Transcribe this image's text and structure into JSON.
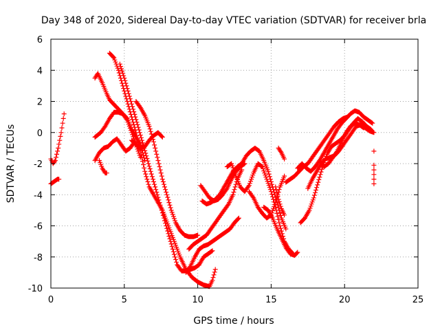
{
  "chart_data": {
    "type": "scatter",
    "title": "Day 348 of 2020, Sidereal Day-to-day VTEC variation (SDTVAR) for receiver brla",
    "xlabel": "GPS time / hours",
    "ylabel": "SDTVAR / TECUs",
    "xlim": [
      0,
      25
    ],
    "ylim": [
      -10,
      6
    ],
    "xticks": [
      0,
      5,
      10,
      15,
      20,
      25
    ],
    "yticks": [
      -10,
      -8,
      -6,
      -4,
      -2,
      0,
      2,
      4,
      6
    ],
    "grid": true,
    "marker": "plus",
    "color": "#ff0000",
    "series": [
      {
        "x": [
          0.0,
          0.15,
          0.3,
          0.45,
          0.55
        ],
        "y": [
          -3.3,
          -3.2,
          -3.1,
          -3.0,
          -3.0
        ]
      },
      {
        "x": [
          0.0,
          0.15,
          0.3,
          0.4,
          0.5,
          0.6,
          0.7,
          0.8,
          0.9
        ],
        "y": [
          -1.7,
          -2.0,
          -1.8,
          -1.4,
          -1.0,
          -0.5,
          0.0,
          0.6,
          1.2
        ]
      },
      {
        "x": [
          3.0,
          3.2,
          3.5,
          3.8,
          4.0,
          4.3,
          4.6,
          4.9,
          5.2,
          5.5,
          5.8,
          6.1,
          6.4
        ],
        "y": [
          3.5,
          3.8,
          3.2,
          2.5,
          2.1,
          1.8,
          1.5,
          1.2,
          0.9,
          0.2,
          -0.3,
          -0.8,
          -1.8
        ]
      },
      {
        "x": [
          3.0,
          3.4,
          3.7,
          4.0,
          4.3,
          4.6,
          4.9,
          5.2,
          5.5,
          5.8,
          6.1
        ],
        "y": [
          -0.3,
          0.0,
          0.4,
          0.9,
          1.3,
          1.3,
          1.2,
          0.8,
          0.0,
          -0.8,
          -1.6
        ]
      },
      {
        "x": [
          3.0,
          3.3,
          3.6,
          3.9,
          4.2,
          4.5,
          4.8,
          5.1,
          5.4,
          5.7,
          6.0
        ],
        "y": [
          -1.8,
          -1.3,
          -1.0,
          -0.9,
          -0.6,
          -0.4,
          -0.8,
          -1.2,
          -1.0,
          -0.6,
          -1.0
        ]
      },
      {
        "x": [
          3.3,
          3.5,
          3.7,
          3.8
        ],
        "y": [
          -1.8,
          -2.3,
          -2.6,
          -2.6
        ]
      },
      {
        "x": [
          4.0,
          4.3,
          4.6,
          4.9,
          5.2,
          5.5,
          5.8,
          6.1,
          6.4,
          6.7,
          7.0,
          7.3,
          7.6,
          8.0,
          8.4,
          8.8,
          9.2,
          9.6,
          10.0,
          10.4,
          10.8,
          11.0,
          11.2
        ],
        "y": [
          5.1,
          4.8,
          4.0,
          3.0,
          2.0,
          1.0,
          0.0,
          -1.2,
          -2.5,
          -3.5,
          -4.0,
          -4.5,
          -5.0,
          -6.0,
          -7.0,
          -8.0,
          -8.8,
          -9.3,
          -9.6,
          -9.8,
          -9.9,
          -9.5,
          -8.8
        ]
      },
      {
        "x": [
          4.7,
          5.0,
          5.3,
          5.6,
          5.9,
          6.2,
          6.5,
          6.8,
          7.1,
          7.4,
          7.7,
          8.0,
          8.3,
          8.6,
          8.9,
          9.2,
          9.5,
          9.8,
          10.1,
          10.4,
          10.7,
          11.0
        ],
        "y": [
          4.4,
          3.5,
          2.5,
          1.5,
          0.5,
          -0.5,
          -1.5,
          -2.5,
          -3.5,
          -4.5,
          -5.5,
          -6.5,
          -7.5,
          -8.5,
          -8.9,
          -8.9,
          -8.8,
          -8.7,
          -8.5,
          -8.0,
          -7.8,
          -7.6
        ]
      },
      {
        "x": [
          5.8,
          6.1,
          6.4,
          6.7,
          7.0,
          7.3,
          7.6,
          7.9,
          8.2,
          8.5,
          8.8,
          9.1,
          9.4,
          9.7,
          10.0
        ],
        "y": [
          2.0,
          1.6,
          1.1,
          0.4,
          -0.6,
          -1.8,
          -3.0,
          -4.0,
          -5.0,
          -5.8,
          -6.3,
          -6.6,
          -6.7,
          -6.7,
          -6.6
        ]
      },
      {
        "x": [
          5.5,
          5.8,
          6.1,
          6.4,
          6.7,
          7.0,
          7.3,
          7.6
        ],
        "y": [
          -0.5,
          -0.8,
          -1.0,
          -0.9,
          -0.5,
          -0.2,
          0.0,
          -0.3
        ]
      },
      {
        "x": [
          9.2,
          9.5,
          9.8,
          10.1,
          10.4,
          10.7,
          11.0,
          11.3,
          11.6,
          11.9,
          12.2,
          12.5,
          12.8
        ],
        "y": [
          -9.0,
          -8.6,
          -8.0,
          -7.5,
          -7.3,
          -7.2,
          -7.0,
          -6.8,
          -6.6,
          -6.4,
          -6.2,
          -5.8,
          -5.5
        ]
      },
      {
        "x": [
          9.4,
          9.7,
          10.0,
          10.3,
          10.6,
          10.9,
          11.2,
          11.5,
          11.8,
          12.1,
          12.4,
          12.7,
          13.0
        ],
        "y": [
          -7.5,
          -7.2,
          -7.0,
          -6.8,
          -6.6,
          -6.2,
          -5.8,
          -5.4,
          -5.0,
          -4.6,
          -4.0,
          -3.0,
          -2.4
        ]
      },
      {
        "x": [
          10.2,
          10.5,
          10.8,
          11.1,
          11.4,
          11.7,
          12.0,
          12.3,
          12.6,
          12.9,
          13.2
        ],
        "y": [
          -3.4,
          -3.8,
          -4.2,
          -4.4,
          -4.3,
          -4.0,
          -3.6,
          -3.0,
          -2.5,
          -2.2,
          -2.0
        ]
      },
      {
        "x": [
          10.3,
          10.6,
          10.9,
          11.2,
          11.5,
          11.8,
          12.1,
          12.4,
          12.7,
          13.0,
          13.3,
          13.6,
          13.9,
          14.2,
          14.5,
          14.8,
          15.1,
          15.4,
          15.7,
          16.0
        ],
        "y": [
          -4.4,
          -4.6,
          -4.5,
          -4.3,
          -4.0,
          -3.5,
          -3.0,
          -2.5,
          -2.2,
          -2.0,
          -1.5,
          -1.2,
          -1.0,
          -1.2,
          -1.8,
          -2.5,
          -3.5,
          -4.5,
          -5.5,
          -6.2
        ]
      },
      {
        "x": [
          12.0,
          12.3,
          12.6,
          12.9,
          13.2,
          13.5,
          13.8,
          14.1,
          14.4,
          14.7,
          15.0,
          15.3,
          15.6,
          15.9,
          16.2,
          16.5
        ],
        "y": [
          -2.2,
          -2.0,
          -2.8,
          -3.5,
          -3.8,
          -3.4,
          -2.6,
          -2.0,
          -2.2,
          -3.0,
          -3.8,
          -4.8,
          -6.0,
          -7.0,
          -7.5,
          -7.8
        ]
      },
      {
        "x": [
          13.5,
          13.8,
          14.1,
          14.4,
          14.7,
          15.0,
          15.3,
          15.6,
          15.9
        ],
        "y": [
          -3.8,
          -4.2,
          -4.8,
          -5.2,
          -5.5,
          -5.3,
          -4.5,
          -3.5,
          -2.8
        ]
      },
      {
        "x": [
          14.5,
          14.8,
          15.1,
          15.4,
          15.7,
          16.0,
          16.3,
          16.6,
          16.8
        ],
        "y": [
          -4.8,
          -5.0,
          -5.5,
          -6.2,
          -6.8,
          -7.4,
          -7.8,
          -7.9,
          -7.7
        ]
      },
      {
        "x": [
          15.3,
          15.5,
          15.7,
          15.9
        ],
        "y": [
          -3.5,
          -4.3,
          -4.9,
          -5.3
        ]
      },
      {
        "x": [
          15.5,
          15.7,
          15.9
        ],
        "y": [
          -1.0,
          -1.3,
          -1.7
        ]
      },
      {
        "x": [
          16.0,
          16.3,
          16.6,
          16.9,
          17.2,
          17.5,
          17.8,
          18.1,
          18.4,
          18.7,
          19.0,
          19.3,
          19.6,
          19.9,
          20.2
        ],
        "y": [
          -3.2,
          -3.0,
          -2.8,
          -2.5,
          -2.2,
          -2.0,
          -1.6,
          -1.2,
          -0.8,
          -0.4,
          0.0,
          0.4,
          0.7,
          0.9,
          1.0
        ]
      },
      {
        "x": [
          16.8,
          17.1,
          17.4,
          17.7,
          18.0,
          18.3,
          18.6,
          18.9,
          19.2,
          19.5,
          19.8,
          20.1,
          20.4,
          20.7,
          21.0,
          21.3,
          21.6,
          21.9
        ],
        "y": [
          -2.3,
          -2.0,
          -2.3,
          -2.5,
          -2.2,
          -1.8,
          -1.3,
          -0.8,
          -0.3,
          0.2,
          0.6,
          0.9,
          1.2,
          1.4,
          1.3,
          1.0,
          0.8,
          0.6
        ]
      },
      {
        "x": [
          17.0,
          17.3,
          17.6,
          17.9,
          18.2,
          18.5,
          18.8,
          19.1,
          19.4,
          19.7,
          20.0,
          20.3,
          20.6,
          20.9,
          21.2,
          21.5,
          21.8
        ],
        "y": [
          -5.8,
          -5.5,
          -5.0,
          -4.2,
          -3.2,
          -2.2,
          -1.4,
          -0.9,
          -0.7,
          -0.5,
          -0.2,
          0.2,
          0.6,
          0.9,
          0.7,
          0.4,
          0.2
        ]
      },
      {
        "x": [
          17.5,
          17.8,
          18.1,
          18.4,
          18.7,
          19.0,
          19.3,
          19.6,
          19.9,
          20.2,
          20.5,
          20.8,
          21.1,
          21.4,
          21.7,
          22.0
        ],
        "y": [
          -3.6,
          -3.0,
          -2.5,
          -2.0,
          -1.7,
          -1.6,
          -1.5,
          -1.2,
          -0.8,
          -0.4,
          0.0,
          0.4,
          0.5,
          0.3,
          0.1,
          0.0
        ]
      },
      {
        "x": [
          18.3,
          18.6,
          18.9,
          19.2,
          19.5,
          19.8,
          20.1,
          20.4,
          20.7,
          21.0,
          21.3
        ],
        "y": [
          -1.8,
          -2.2,
          -2.0,
          -1.6,
          -1.2,
          -0.6,
          0.0,
          0.4,
          0.6,
          0.5,
          0.3
        ]
      },
      {
        "x": [
          22.0,
          22.0,
          22.0,
          22.0,
          22.0,
          22.0
        ],
        "y": [
          -1.2,
          -2.1,
          -2.4,
          -2.7,
          -3.0,
          -3.3
        ]
      }
    ]
  }
}
